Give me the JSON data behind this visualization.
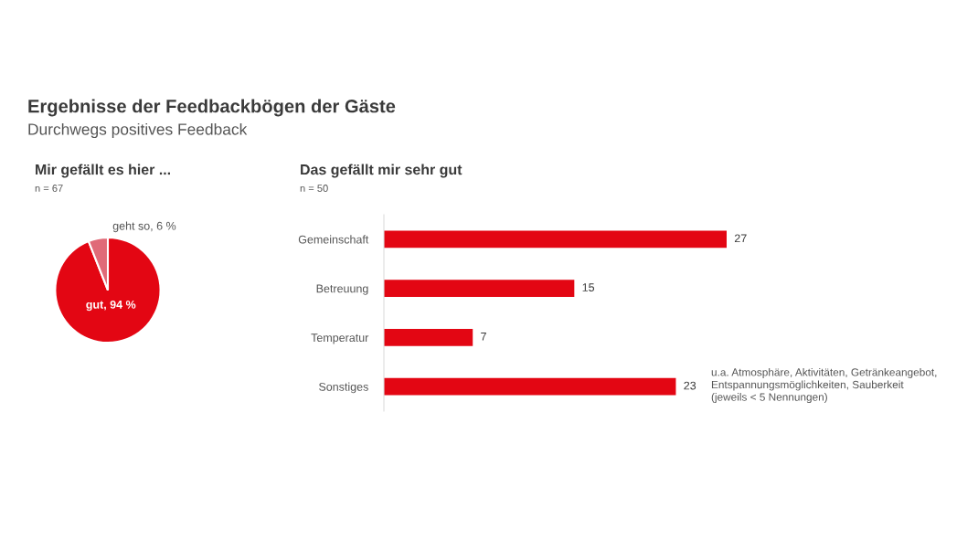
{
  "chart_data": [
    {
      "type": "pie",
      "title": "Mir gefällt es hier ...",
      "subtitle": "n = 67",
      "annotations": [
        "Ergebnisse der Feedbackbögen der Gäste",
        "Durchwegs positives Feedback"
      ],
      "categories": [
        "gut",
        "geht so"
      ],
      "values": [
        94,
        6
      ],
      "value_labels": [
        "94 %",
        "6 %"
      ],
      "colors": [
        "#e30613",
        "#e06a78"
      ]
    },
    {
      "type": "bar",
      "orientation": "horizontal",
      "title": "Das gefällt mir sehr gut",
      "subtitle": "n = 50",
      "categories": [
        "Gemeinschaft",
        "Betreuung",
        "Temperatur",
        "Sonstiges"
      ],
      "values": [
        27,
        15,
        7,
        23
      ],
      "color": "#e30613",
      "data_labels": true,
      "annotations": [
        "u.a. Atmosphäre, Aktivitäten, Getränkeangebot,\nEntspannungsmöglichkeiten, Sauberkeit\n(jeweils < 5 Nennungen)"
      ]
    }
  ]
}
